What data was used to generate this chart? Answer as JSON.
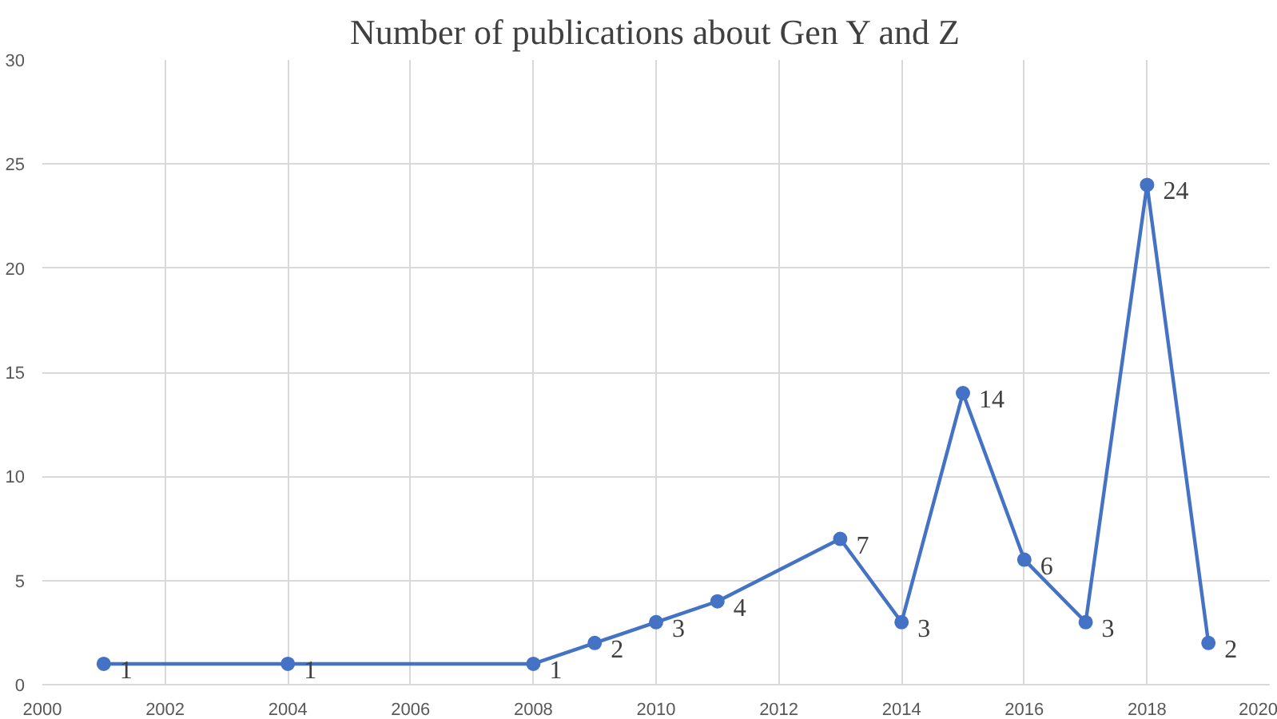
{
  "chart_data": {
    "type": "line",
    "title": "Number of publications about Gen Y and Z",
    "x": [
      2001,
      2004,
      2008,
      2009,
      2010,
      2011,
      2013,
      2014,
      2015,
      2016,
      2017,
      2018,
      2019
    ],
    "series": [
      {
        "color": "#4472c4",
        "values": [
          1,
          1,
          1,
          2,
          3,
          4,
          7,
          3,
          14,
          6,
          3,
          24,
          2
        ]
      }
    ],
    "xlim": [
      2000,
      2020
    ],
    "xticks": [
      2000,
      2002,
      2004,
      2006,
      2008,
      2010,
      2012,
      2014,
      2016,
      2018,
      2020
    ],
    "ylim": [
      0,
      30
    ],
    "yticks": [
      0,
      5,
      10,
      15,
      20,
      25,
      30
    ],
    "grid": true,
    "marker": "circle",
    "line_style": "solid",
    "data_labels": true
  }
}
